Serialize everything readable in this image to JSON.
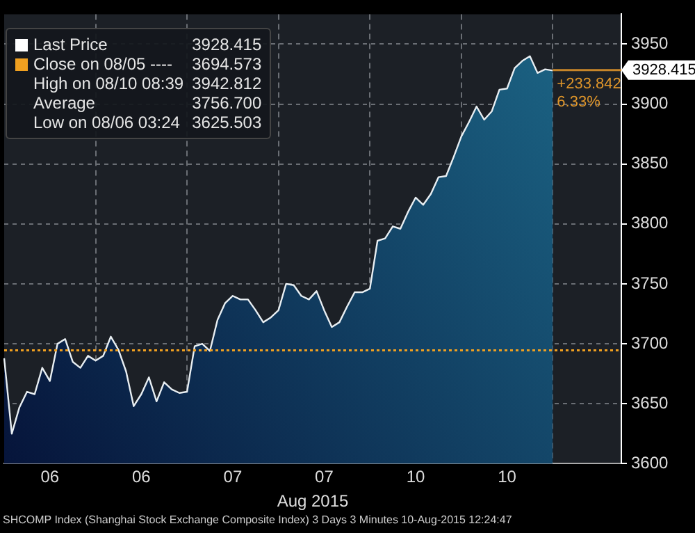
{
  "chart_data": {
    "type": "area",
    "xlabel": "Aug 2015",
    "categories": [
      null,
      null,
      null,
      null,
      null,
      null,
      "06",
      null,
      null,
      null,
      null,
      null,
      null,
      null,
      null,
      null,
      null,
      null,
      "06",
      null,
      null,
      null,
      null,
      null,
      null,
      null,
      null,
      null,
      null,
      null,
      "07",
      null,
      null,
      null,
      null,
      null,
      null,
      null,
      null,
      null,
      null,
      null,
      "07",
      null,
      null,
      null,
      null,
      null,
      null,
      null,
      null,
      null,
      null,
      null,
      "10",
      null,
      null,
      null,
      null,
      null,
      null,
      null,
      null,
      null,
      null,
      null,
      "10",
      null,
      null,
      null,
      null,
      null,
      null,
      null,
      null,
      null,
      null,
      null,
      null,
      null,
      null,
      null
    ],
    "series": [
      {
        "color": "#1d6a8a",
        "values": [
          3688,
          3625,
          3647,
          3660,
          3658,
          3680,
          3669,
          3700,
          3704,
          3685,
          3680,
          3690,
          3686,
          3690,
          3706,
          3695,
          3677,
          3648,
          3658,
          3672,
          3652,
          3668,
          3662,
          3659,
          3660,
          3698,
          3700,
          3694,
          3720,
          3734,
          3740,
          3737,
          3737,
          3728,
          3718,
          3722,
          3728,
          3750,
          3749,
          3740,
          3737,
          3744,
          3728,
          3714,
          3718,
          3731,
          3743,
          3743,
          3746,
          3786,
          3788,
          3798,
          3796,
          3810,
          3822,
          3816,
          3825,
          3839,
          3840,
          3856,
          3873,
          3885,
          3898,
          3887,
          3894,
          3912,
          3913,
          3930,
          3936,
          3940,
          3926,
          3929,
          3928,
          null,
          null,
          null,
          null,
          null,
          null,
          null,
          null,
          null
        ]
      }
    ],
    "ylim": [
      3600,
      3975
    ],
    "yticks": [
      3600,
      3650,
      3700,
      3750,
      3800,
      3850,
      3900,
      3950
    ],
    "grid": true,
    "line_style": "solid",
    "ref_lines": [
      {
        "axis": "y",
        "value": 3694.573,
        "label": null,
        "color": "#f0a020",
        "line_style": "dotted"
      },
      {
        "axis": "y",
        "value": 3928.415,
        "label": "3928.415",
        "color": "#c8862a",
        "line_style": "solid"
      }
    ],
    "annotations": [
      "Last Price",
      "3928.415",
      "Close on 08/05 ----",
      "3694.573",
      "High on 08/10 08:39",
      "3942.812",
      "Average",
      "3756.700",
      "Low on 08/06 03:24",
      "3625.503",
      "+233.842",
      "6.33%",
      "SHCOMP Index (Shanghai Stock Exchange Composite Index) 3 Days 3 Minutes 10-Aug-2015 12:24:47"
    ]
  }
}
